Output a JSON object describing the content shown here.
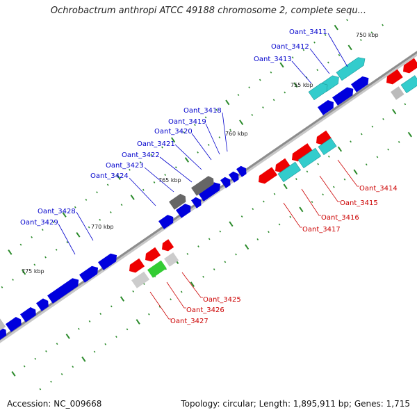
{
  "title": "Ochrobactrum anthropi ATCC 49188 chromosome 2, complete sequ...",
  "footer": {
    "accession": "Accession: NC_009668",
    "summary": "Topology: circular; Length: 1,895,911 bp; Genes: 1,715"
  },
  "colors": {
    "forward_label": "#0000cc",
    "reverse_label": "#cc0000",
    "tick": "#2a8a2a",
    "backbone": "#8c8c8c"
  },
  "scale_labels": [
    "750 kbp",
    "755 kbp",
    "760 kbp",
    "765 kbp",
    "770 kbp",
    "775 kbp"
  ],
  "gene_labels_forward": [
    "Oant_3411",
    "Oant_3412",
    "Oant_3413",
    "Oant_3418",
    "Oant_3419",
    "Oant_3420",
    "Oant_3421",
    "Oant_3422",
    "Oant_3423",
    "Oant_3424",
    "Oant_3428",
    "Oant_3429"
  ],
  "gene_labels_reverse": [
    "Oant_3414",
    "Oant_3415",
    "Oant_3416",
    "Oant_3417",
    "Oant_3425",
    "Oant_3426",
    "Oant_3427"
  ]
}
